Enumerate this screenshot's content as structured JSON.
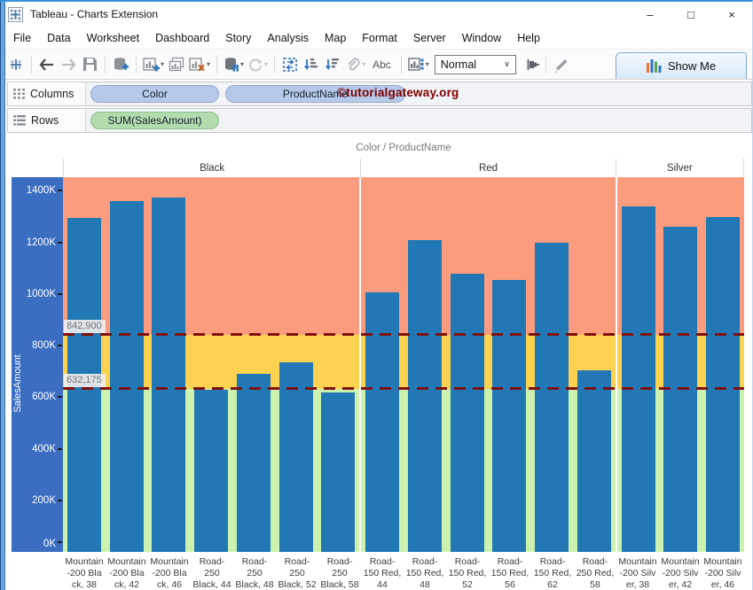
{
  "window": {
    "title": "Tableau - Charts Extension",
    "controls": {
      "minimize": "–",
      "maximize": "□",
      "close": "×"
    }
  },
  "menu": {
    "items": [
      "File",
      "Data",
      "Worksheet",
      "Dashboard",
      "Story",
      "Analysis",
      "Map",
      "Format",
      "Server",
      "Window",
      "Help"
    ]
  },
  "toolbar": {
    "abc_label": "Abc",
    "fit_value": "Normal",
    "show_me_label": "Show Me"
  },
  "shelves": {
    "columns_label": "Columns",
    "rows_label": "Rows",
    "columns_pills": [
      {
        "label": "Color"
      },
      {
        "label": "ProductName"
      }
    ],
    "rows_pills": [
      {
        "label": "SUM(SalesAmount)"
      }
    ],
    "watermark": "©tutorialgateway.org"
  },
  "chart_data": {
    "type": "bar",
    "title": "Color  /  ProductName",
    "ylabel": "SalesAmount",
    "ytick_suffix": "K",
    "yticks_k": [
      0,
      200,
      400,
      600,
      800,
      1000,
      1200,
      1400
    ],
    "ylim_k": [
      0,
      1453
    ],
    "grid": false,
    "legend_position": "none",
    "panes": [
      {
        "label": "Black",
        "bar_count": 7
      },
      {
        "label": "Red",
        "bar_count": 6
      },
      {
        "label": "Silver",
        "bar_count": 3
      }
    ],
    "categories": [
      "Mountain-200 Black, 38",
      "Mountain-200 Black, 42",
      "Mountain-200 Black, 46",
      "Road-250 Black, 44",
      "Road-250 Black, 48",
      "Road-250 Black, 52",
      "Road-250 Black, 58",
      "Road-150 Red, 44",
      "Road-150 Red, 48",
      "Road-150 Red, 52",
      "Road-150 Red, 56",
      "Road-150 Red, 62",
      "Road-250 Red, 58",
      "Mountain-200 Silver, 38",
      "Mountain-200 Silver, 42",
      "Mountain-200 Silver, 46"
    ],
    "category_label_lines": [
      [
        "Mountain",
        "-200 Bla",
        "ck, 38"
      ],
      [
        "Mountain",
        "-200 Bla",
        "ck, 42"
      ],
      [
        "Mountain",
        "-200 Bla",
        "ck, 46"
      ],
      [
        "Road-",
        "250",
        "Black, 44"
      ],
      [
        "Road-",
        "250",
        "Black, 48"
      ],
      [
        "Road-",
        "250",
        "Black, 52"
      ],
      [
        "Road-",
        "250",
        "Black, 58"
      ],
      [
        "Road-",
        "150 Red,",
        "44"
      ],
      [
        "Road-",
        "150 Red,",
        "48"
      ],
      [
        "Road-",
        "150 Red,",
        "52"
      ],
      [
        "Road-",
        "150 Red,",
        "56"
      ],
      [
        "Road-",
        "150 Red,",
        "62"
      ],
      [
        "Road-",
        "250 Red,",
        "58"
      ],
      [
        "Mountain",
        "-200 Silv",
        "er, 38"
      ],
      [
        "Mountain",
        "-200 Silv",
        "er, 42"
      ],
      [
        "Mountain",
        "-200 Silv",
        "er, 46"
      ]
    ],
    "values_k": [
      1295,
      1360,
      1375,
      630,
      690,
      735,
      620,
      1005,
      1210,
      1080,
      1055,
      1200,
      705,
      1340,
      1260,
      1300
    ],
    "reference_lines": [
      {
        "value_k": 842.9,
        "label": "842,900"
      },
      {
        "value_k": 632.175,
        "label": "632,175"
      }
    ],
    "bands": [
      {
        "name": "above",
        "from_k": 842.9,
        "to_k": 1453,
        "color": "#FC9C7E"
      },
      {
        "name": "middle",
        "from_k": 632.175,
        "to_k": 842.9,
        "color": "#FCD250"
      },
      {
        "name": "below",
        "from_k": 0,
        "to_k": 632.175,
        "color": "#CDF1AE"
      }
    ],
    "colors": {
      "bar": "#2178B4",
      "axis_bg": "#3B6EC0",
      "ref_line": "#801010"
    }
  }
}
